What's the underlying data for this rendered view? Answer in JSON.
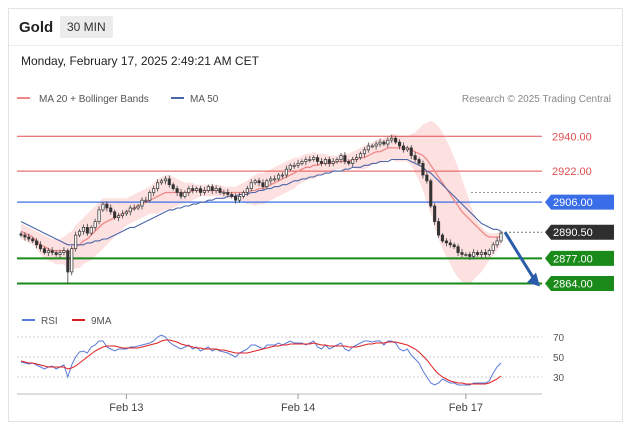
{
  "header": {
    "title": "Gold",
    "interval": "30 MIN",
    "datetime": "Monday, February 17, 2025 2:49:21 AM CET"
  },
  "colors": {
    "resistance": "#e05050",
    "pivot": "#3a6ee8",
    "support": "#1a8a1a",
    "price_tag": "#2f2f2f",
    "ma20": "#f08888",
    "ma50": "#4c66a8",
    "bollinger": "#fcd6d6",
    "rsi": "#5b7bd8",
    "rsi_ma": "#e02020",
    "arrow": "#2a5caa"
  },
  "chart_data": [
    {
      "type": "candlestick",
      "title": "",
      "legend": [
        {
          "name": "MA 20 + Bollinger Bands",
          "color": "#f08888"
        },
        {
          "name": "MA 50",
          "color": "#4c66a8"
        }
      ],
      "legend_position": "top-left",
      "credit": "Research © 2025 Trading Central",
      "x_ticks": [
        "Feb 13",
        "Feb 14",
        "Feb 17"
      ],
      "ylim": [
        2855,
        2952
      ],
      "levels": [
        {
          "value": 2940.0,
          "label": "2940.00",
          "kind": "resistance"
        },
        {
          "value": 2922.0,
          "label": "2922.00",
          "kind": "resistance"
        },
        {
          "value": 2906.0,
          "label": "2906.00",
          "kind": "pivot"
        },
        {
          "value": 2890.5,
          "label": "2890.50",
          "kind": "price"
        },
        {
          "value": 2877.0,
          "label": "2877.00",
          "kind": "support"
        },
        {
          "value": 2864.0,
          "label": "2864.00",
          "kind": "support"
        }
      ],
      "close": [
        2889,
        2888,
        2887,
        2886,
        2884,
        2882,
        2880,
        2881,
        2880,
        2879,
        2880,
        2881,
        2870,
        2882,
        2889,
        2891,
        2893,
        2890,
        2893,
        2896,
        2902,
        2905,
        2903,
        2901,
        2898,
        2899,
        2900,
        2901,
        2903,
        2903,
        2904,
        2907,
        2907,
        2911,
        2913,
        2916,
        2917,
        2918,
        2915,
        2913,
        2911,
        2909,
        2911,
        2913,
        2912,
        2913,
        2911,
        2912,
        2914,
        2912,
        2913,
        2911,
        2911,
        2910,
        2909,
        2907,
        2909,
        2911,
        2913,
        2916,
        2917,
        2916,
        2914,
        2917,
        2918,
        2918,
        2920,
        2920,
        2923,
        2925,
        2925,
        2926,
        2927,
        2928,
        2928,
        2929,
        2927,
        2926,
        2928,
        2926,
        2927,
        2928,
        2930,
        2927,
        2926,
        2928,
        2929,
        2931,
        2933,
        2935,
        2935,
        2936,
        2937,
        2936,
        2938,
        2939,
        2937,
        2935,
        2933,
        2934,
        2930,
        2928,
        2926,
        2920,
        2917,
        2904,
        2896,
        2889,
        2886,
        2885,
        2884,
        2883,
        2880,
        2879,
        2879,
        2878,
        2880,
        2879,
        2880,
        2879,
        2881,
        2884,
        2886,
        2890
      ],
      "ma20": [
        2891,
        2890,
        2889,
        2888,
        2886,
        2884,
        2883,
        2882,
        2881,
        2881,
        2881,
        2881,
        2880,
        2881,
        2883,
        2884,
        2886,
        2887,
        2889,
        2891,
        2893,
        2895,
        2896,
        2897,
        2898,
        2899,
        2900,
        2901,
        2902,
        2903,
        2904,
        2905,
        2906,
        2907,
        2908,
        2909,
        2910,
        2911,
        2911,
        2911,
        2911,
        2911,
        2911,
        2911,
        2912,
        2912,
        2912,
        2912,
        2912,
        2912,
        2912,
        2912,
        2911,
        2911,
        2911,
        2911,
        2911,
        2911,
        2911,
        2912,
        2912,
        2913,
        2913,
        2914,
        2915,
        2916,
        2917,
        2918,
        2919,
        2920,
        2921,
        2922,
        2923,
        2924,
        2924,
        2925,
        2925,
        2926,
        2926,
        2926,
        2926,
        2927,
        2927,
        2927,
        2927,
        2928,
        2928,
        2929,
        2929,
        2930,
        2931,
        2932,
        2932,
        2933,
        2934,
        2934,
        2934,
        2934,
        2934,
        2934,
        2933,
        2932,
        2931,
        2930,
        2928,
        2925,
        2922,
        2919,
        2916,
        2913,
        2910,
        2907,
        2904,
        2901,
        2899,
        2897,
        2895,
        2893,
        2891,
        2889,
        2888,
        2888,
        2888,
        2888
      ],
      "bb_upper": [
        2895,
        2894,
        2893,
        2892,
        2891,
        2890,
        2889,
        2888,
        2887,
        2887,
        2887,
        2888,
        2890,
        2891,
        2894,
        2896,
        2898,
        2900,
        2902,
        2904,
        2906,
        2908,
        2908,
        2908,
        2908,
        2908,
        2908,
        2908,
        2909,
        2910,
        2911,
        2912,
        2913,
        2914,
        2916,
        2918,
        2919,
        2920,
        2920,
        2919,
        2918,
        2917,
        2916,
        2916,
        2916,
        2915,
        2915,
        2915,
        2915,
        2915,
        2915,
        2915,
        2914,
        2914,
        2914,
        2914,
        2915,
        2916,
        2917,
        2919,
        2920,
        2921,
        2921,
        2922,
        2923,
        2924,
        2925,
        2926,
        2927,
        2928,
        2929,
        2929,
        2930,
        2931,
        2931,
        2932,
        2931,
        2931,
        2931,
        2930,
        2930,
        2930,
        2931,
        2931,
        2931,
        2932,
        2933,
        2934,
        2935,
        2936,
        2937,
        2938,
        2939,
        2939,
        2940,
        2941,
        2941,
        2940,
        2940,
        2940,
        2941,
        2942,
        2944,
        2946,
        2947,
        2948,
        2947,
        2945,
        2942,
        2938,
        2934,
        2929,
        2924,
        2918,
        2912,
        2906,
        2900,
        2896,
        2893,
        2891,
        2890,
        2890,
        2890,
        2891
      ],
      "bb_lower": [
        2887,
        2886,
        2885,
        2884,
        2882,
        2879,
        2877,
        2876,
        2875,
        2874,
        2874,
        2874,
        2871,
        2871,
        2872,
        2872,
        2874,
        2875,
        2876,
        2878,
        2880,
        2882,
        2884,
        2886,
        2888,
        2890,
        2892,
        2894,
        2895,
        2896,
        2897,
        2898,
        2899,
        2900,
        2900,
        2900,
        2901,
        2902,
        2902,
        2903,
        2904,
        2905,
        2906,
        2906,
        2907,
        2908,
        2909,
        2909,
        2909,
        2909,
        2909,
        2909,
        2908,
        2908,
        2908,
        2908,
        2907,
        2906,
        2905,
        2905,
        2904,
        2905,
        2905,
        2906,
        2907,
        2908,
        2909,
        2910,
        2911,
        2912,
        2913,
        2915,
        2916,
        2917,
        2918,
        2918,
        2919,
        2920,
        2921,
        2922,
        2922,
        2923,
        2923,
        2923,
        2923,
        2924,
        2923,
        2923,
        2923,
        2924,
        2925,
        2926,
        2926,
        2927,
        2928,
        2928,
        2927,
        2927,
        2927,
        2927,
        2925,
        2921,
        2917,
        2912,
        2906,
        2900,
        2893,
        2887,
        2882,
        2878,
        2874,
        2870,
        2867,
        2865,
        2864,
        2864,
        2866,
        2868,
        2870,
        2873,
        2876,
        2879,
        2881,
        2884
      ],
      "ma50": [
        2896,
        2895,
        2894,
        2893,
        2892,
        2891,
        2890,
        2889,
        2888,
        2887,
        2886,
        2885,
        2884,
        2884,
        2884,
        2884,
        2884,
        2885,
        2885,
        2886,
        2886,
        2887,
        2887,
        2888,
        2889,
        2890,
        2891,
        2892,
        2893,
        2893,
        2894,
        2895,
        2896,
        2897,
        2898,
        2899,
        2900,
        2901,
        2902,
        2902,
        2903,
        2903,
        2904,
        2904,
        2905,
        2905,
        2906,
        2906,
        2907,
        2907,
        2908,
        2908,
        2908,
        2909,
        2909,
        2909,
        2910,
        2910,
        2910,
        2911,
        2911,
        2912,
        2912,
        2913,
        2913,
        2914,
        2914,
        2915,
        2915,
        2916,
        2917,
        2917,
        2918,
        2918,
        2919,
        2919,
        2920,
        2920,
        2921,
        2921,
        2922,
        2922,
        2922,
        2923,
        2923,
        2924,
        2924,
        2924,
        2925,
        2925,
        2926,
        2926,
        2927,
        2927,
        2927,
        2928,
        2928,
        2928,
        2928,
        2928,
        2927,
        2926,
        2925,
        2924,
        2922,
        2921,
        2919,
        2917,
        2915,
        2913,
        2911,
        2909,
        2907,
        2905,
        2903,
        2901,
        2899,
        2897,
        2895,
        2894,
        2893,
        2892,
        2892,
        2891
      ]
    },
    {
      "type": "line",
      "title": "",
      "legend": [
        {
          "name": "RSI",
          "color": "#5b7bd8"
        },
        {
          "name": "9MA",
          "color": "#e02020"
        }
      ],
      "legend_position": "top-left",
      "y_ticks": [
        "70",
        "50",
        "30"
      ],
      "ylim": [
        18,
        78
      ],
      "rsi": [
        45,
        44,
        43,
        44,
        42,
        40,
        38,
        40,
        41,
        38,
        40,
        42,
        30,
        42,
        50,
        55,
        56,
        54,
        60,
        62,
        66,
        66,
        60,
        58,
        56,
        58,
        58,
        58,
        60,
        60,
        61,
        62,
        63,
        64,
        66,
        70,
        72,
        70,
        65,
        62,
        60,
        58,
        60,
        62,
        58,
        60,
        56,
        58,
        60,
        56,
        58,
        56,
        55,
        54,
        52,
        50,
        54,
        56,
        58,
        62,
        62,
        60,
        58,
        62,
        62,
        62,
        64,
        62,
        64,
        66,
        64,
        64,
        64,
        62,
        64,
        66,
        60,
        58,
        62,
        58,
        60,
        62,
        64,
        58,
        56,
        60,
        62,
        64,
        66,
        66,
        65,
        66,
        66,
        62,
        66,
        66,
        64,
        58,
        56,
        58,
        52,
        48,
        44,
        36,
        30,
        24,
        22,
        24,
        28,
        26,
        24,
        24,
        22,
        22,
        22,
        22,
        24,
        24,
        24,
        24,
        26,
        34,
        40,
        44
      ],
      "rsi_ma": [
        46,
        45,
        44,
        44,
        43,
        42,
        41,
        40,
        40,
        40,
        40,
        40,
        38,
        39,
        41,
        44,
        47,
        50,
        53,
        56,
        58,
        60,
        61,
        61,
        61,
        60,
        59,
        59,
        59,
        59,
        59,
        60,
        61,
        62,
        63,
        64,
        66,
        67,
        67,
        66,
        65,
        63,
        62,
        61,
        60,
        59,
        59,
        58,
        58,
        58,
        58,
        57,
        57,
        56,
        55,
        54,
        54,
        54,
        54,
        55,
        56,
        57,
        58,
        59,
        60,
        61,
        61,
        62,
        62,
        63,
        63,
        63,
        63,
        63,
        63,
        64,
        63,
        62,
        62,
        61,
        61,
        61,
        61,
        61,
        60,
        60,
        60,
        61,
        62,
        63,
        63,
        64,
        64,
        64,
        65,
        65,
        65,
        64,
        63,
        62,
        60,
        58,
        55,
        51,
        47,
        42,
        37,
        33,
        30,
        28,
        26,
        25,
        24,
        24,
        23,
        23,
        23,
        23,
        23,
        23,
        24,
        26,
        28,
        31
      ]
    }
  ]
}
